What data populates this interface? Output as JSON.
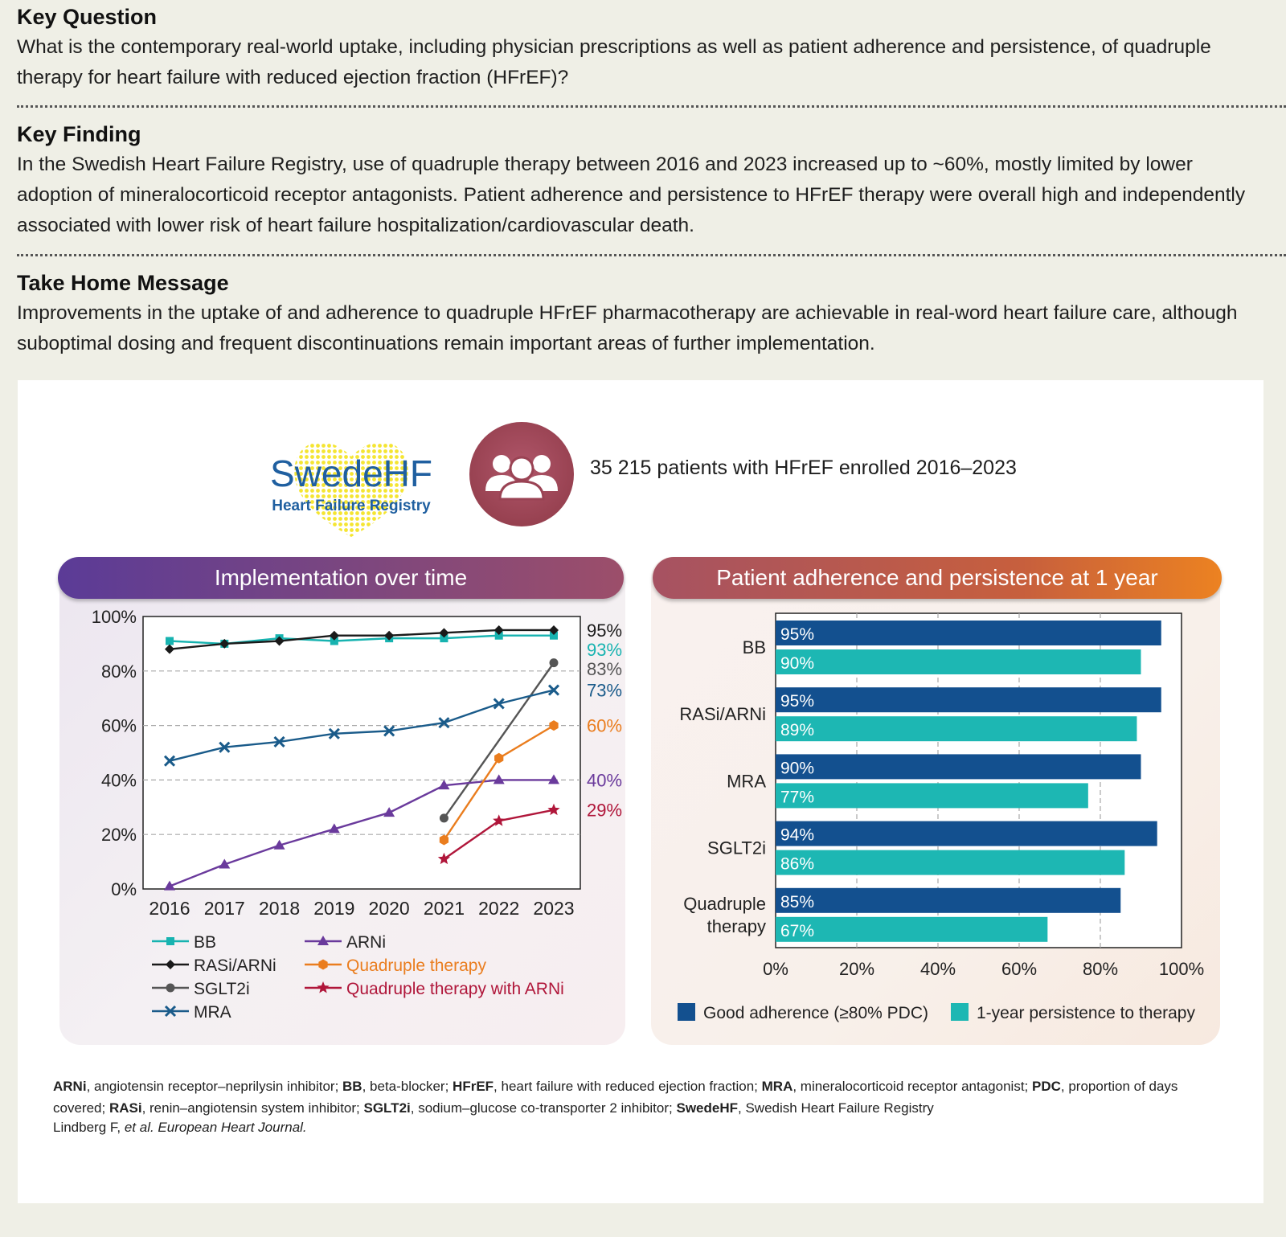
{
  "key_question": {
    "heading": "Key Question",
    "text": "What is the contemporary real-world uptake, including physician prescriptions as well as patient adherence and persistence, of quadruple therapy for heart failure with reduced ejection fraction (HFrEF)?"
  },
  "key_finding": {
    "heading": "Key Finding",
    "text": "In the Swedish Heart Failure Registry, use of quadruple therapy between 2016 and 2023 increased up to ~60%, mostly limited by lower adoption of mineralocorticoid receptor antagonists. Patient adherence and persistence to HFrEF therapy were overall high and independently associated with lower risk of heart failure hospitalization/cardiovascular death."
  },
  "take_home": {
    "heading": "Take Home Message",
    "text": "Improvements in the uptake of and adherence to quadruple HFrEF pharmacotherapy are achievable in real-word heart failure care, although suboptimal dosing and frequent discontinuations remain important areas of further implementation."
  },
  "registry": {
    "logo_main": "SwedeHF",
    "logo_sub": "Heart Failure Registry",
    "enrollment": "35 215 patients with HFrEF enrolled 2016–2023"
  },
  "colors": {
    "bb": "#17b3b0",
    "rasi": "#1a1a1a",
    "sglt2i": "#555555",
    "mra": "#1a5b8a",
    "arni": "#6a3a9c",
    "quad": "#ea7d1e",
    "quad_arni": "#b0163a",
    "adherence": "#13508f",
    "persistence": "#1db7b3"
  },
  "chart_data": [
    {
      "type": "line",
      "title": "Implementation over time",
      "x": [
        2016,
        2017,
        2018,
        2019,
        2020,
        2021,
        2022,
        2023
      ],
      "x_tick_labels": [
        "2016",
        "2017",
        "2018",
        "2019",
        "2020",
        "2021",
        "2022",
        "2023"
      ],
      "ylim": [
        0,
        100
      ],
      "y_ticks": [
        0,
        20,
        40,
        60,
        80,
        100
      ],
      "y_tick_labels": [
        "0%",
        "20%",
        "40%",
        "60%",
        "80%",
        "100%"
      ],
      "grid": "horizontal dashed",
      "legend_position": "bottom",
      "series": [
        {
          "key": "bb",
          "name": "BB",
          "marker": "square",
          "x": [
            2016,
            2017,
            2018,
            2019,
            2020,
            2021,
            2022,
            2023
          ],
          "y": [
            91,
            90,
            92,
            91,
            92,
            92,
            93,
            93
          ],
          "end_label": "93%"
        },
        {
          "key": "rasi",
          "name": "RASi/ARNi",
          "marker": "diamond",
          "x": [
            2016,
            2017,
            2018,
            2019,
            2020,
            2021,
            2022,
            2023
          ],
          "y": [
            88,
            90,
            91,
            93,
            93,
            94,
            95,
            95
          ],
          "end_label": "95%"
        },
        {
          "key": "sglt2i",
          "name": "SGLT2i",
          "marker": "circle",
          "x": [
            2021,
            2023
          ],
          "y": [
            26,
            83
          ],
          "end_label": "83%"
        },
        {
          "key": "mra",
          "name": "MRA",
          "marker": "cross",
          "x": [
            2016,
            2017,
            2018,
            2019,
            2020,
            2021,
            2022,
            2023
          ],
          "y": [
            47,
            52,
            54,
            57,
            58,
            61,
            68,
            73
          ],
          "end_label": "73%"
        },
        {
          "key": "arni",
          "name": "ARNi",
          "marker": "triangle",
          "x": [
            2016,
            2017,
            2018,
            2019,
            2020,
            2021,
            2022,
            2023
          ],
          "y": [
            1,
            9,
            16,
            22,
            28,
            38,
            40,
            40
          ],
          "end_label": "40%"
        },
        {
          "key": "quad",
          "name": "Quadruple therapy",
          "marker": "hexagon",
          "x": [
            2021,
            2022,
            2023
          ],
          "y": [
            18,
            48,
            60
          ],
          "end_label": "60%"
        },
        {
          "key": "quad_arni",
          "name": "Quadruple therapy with ARNi",
          "marker": "star",
          "x": [
            2021,
            2022,
            2023
          ],
          "y": [
            11,
            25,
            29
          ],
          "end_label": "29%"
        }
      ]
    },
    {
      "type": "bar",
      "orientation": "horizontal",
      "title": "Patient adherence and persistence at 1 year",
      "categories": [
        "BB",
        "RASi/ARNi",
        "MRA",
        "SGLT2i",
        "Quadruple therapy"
      ],
      "category_lines": [
        [
          "BB"
        ],
        [
          "RASi/ARNi"
        ],
        [
          "MRA"
        ],
        [
          "SGLT2i"
        ],
        [
          "Quadruple",
          "therapy"
        ]
      ],
      "xlim": [
        0,
        100
      ],
      "x_ticks": [
        0,
        20,
        40,
        60,
        80,
        100
      ],
      "x_tick_labels": [
        "0%",
        "20%",
        "40%",
        "60%",
        "80%",
        "100%"
      ],
      "grid": "vertical dashed",
      "legend_position": "bottom",
      "series": [
        {
          "key": "adherence",
          "name": "Good adherence (≥80% PDC)",
          "values": [
            95,
            95,
            90,
            94,
            85
          ],
          "labels": [
            "95%",
            "95%",
            "90%",
            "94%",
            "85%"
          ]
        },
        {
          "key": "persistence",
          "name": "1-year persistence to therapy",
          "values": [
            90,
            89,
            77,
            86,
            67
          ],
          "labels": [
            "90%",
            "89%",
            "77%",
            "86%",
            "67%"
          ]
        }
      ]
    }
  ],
  "footnote": {
    "abbreviations": [
      {
        "abbr": "ARNi",
        "def": ", angiotensin receptor–neprilysin inhibitor; "
      },
      {
        "abbr": "BB",
        "def": ", beta-blocker; "
      },
      {
        "abbr": "HFrEF",
        "def": ", heart failure with reduced ejection fraction; "
      },
      {
        "abbr": "MRA",
        "def": ", mineralocorticoid receptor antagonist; "
      },
      {
        "abbr": "PDC",
        "def": ", proportion of days covered; "
      },
      {
        "abbr": "RASi",
        "def": ", renin–angiotensin system inhibitor; "
      },
      {
        "abbr": "SGLT2i",
        "def": ", sodium–glucose co-transporter 2 inhibitor; "
      },
      {
        "abbr": "SwedeHF",
        "def": ", Swedish Heart Failure Registry"
      }
    ],
    "citation_author": "Lindberg F, ",
    "citation_rest": "et al. European Heart Journal."
  }
}
